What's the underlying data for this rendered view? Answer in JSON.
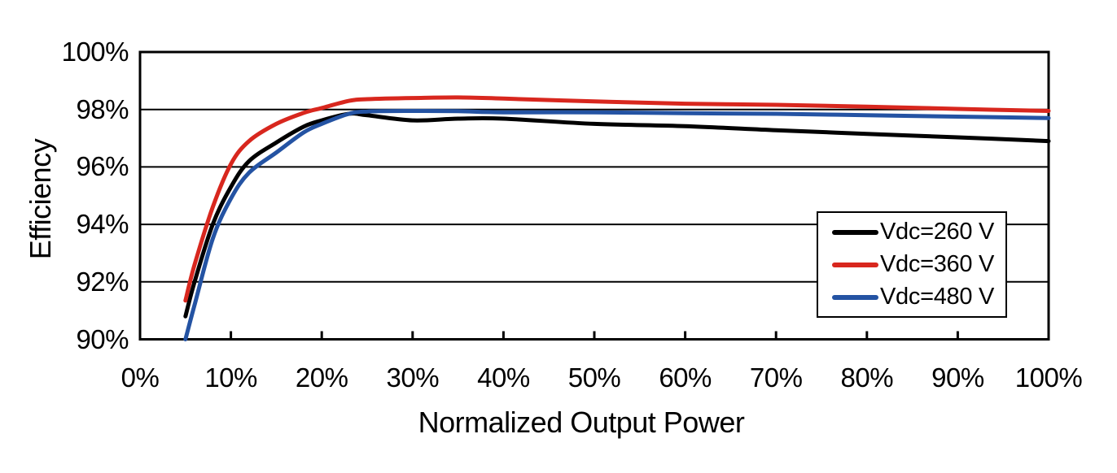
{
  "chart_data": {
    "type": "line",
    "xlabel": "Normalized Output Power",
    "ylabel": "Efficiency",
    "xlim": [
      0,
      100
    ],
    "ylim": [
      90,
      100
    ],
    "x_ticks": [
      0,
      10,
      20,
      30,
      40,
      50,
      60,
      70,
      80,
      90,
      100
    ],
    "x_tick_labels": [
      "0%",
      "10%",
      "20%",
      "30%",
      "40%",
      "50%",
      "60%",
      "70%",
      "80%",
      "90%",
      "100%"
    ],
    "y_ticks": [
      90,
      92,
      94,
      96,
      98,
      100
    ],
    "y_tick_labels": [
      "90%",
      "92%",
      "94%",
      "96%",
      "98%",
      "100%"
    ],
    "grid": "horizontal",
    "legend_position": "inside-right",
    "x": [
      5,
      6,
      8,
      10,
      12,
      15,
      18,
      20,
      23,
      25,
      30,
      35,
      40,
      50,
      60,
      70,
      80,
      90,
      100
    ],
    "series": [
      {
        "name": "Vdc=260 V",
        "color": "#000000",
        "values": [
          90.8,
          92.0,
          94.0,
          95.3,
          96.2,
          96.85,
          97.4,
          97.62,
          97.85,
          97.8,
          97.62,
          97.68,
          97.68,
          97.5,
          97.42,
          97.28,
          97.15,
          97.03,
          96.9
        ]
      },
      {
        "name": "Vdc=360 V",
        "color": "#d8271e",
        "values": [
          91.35,
          92.6,
          94.6,
          96.1,
          96.9,
          97.5,
          97.88,
          98.05,
          98.3,
          98.36,
          98.4,
          98.42,
          98.38,
          98.28,
          98.2,
          98.16,
          98.1,
          98.02,
          97.95
        ]
      },
      {
        "name": "Vdc=480 V",
        "color": "#2453a3",
        "values": [
          90.0,
          91.2,
          93.5,
          94.9,
          95.8,
          96.5,
          97.2,
          97.5,
          97.85,
          97.93,
          97.95,
          97.94,
          97.9,
          97.9,
          97.87,
          97.85,
          97.8,
          97.75,
          97.7
        ]
      }
    ]
  }
}
